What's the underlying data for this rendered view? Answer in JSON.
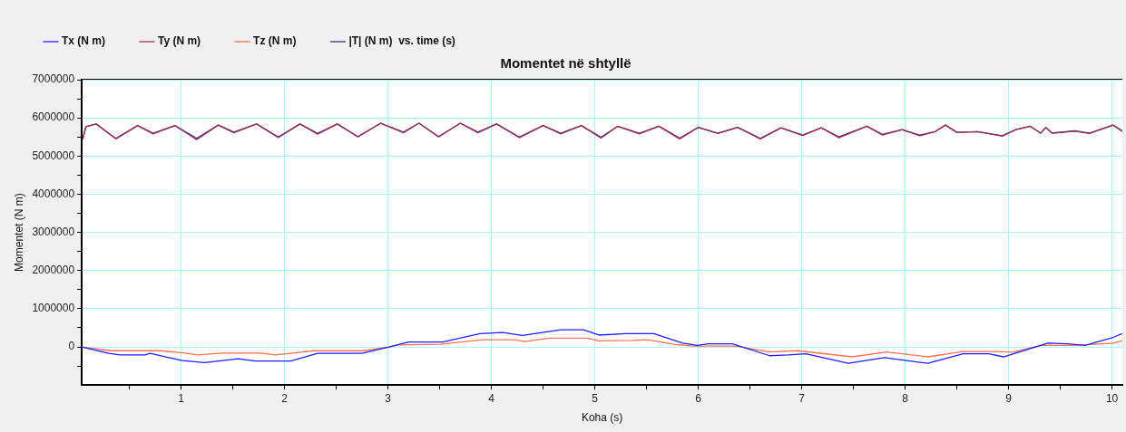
{
  "chart_data": {
    "type": "line",
    "title": "Momentet në shtyllë",
    "xlabel": "Koha (s)",
    "ylabel": "Momentet (N m)",
    "xlim": [
      0.04,
      10.1
    ],
    "xticks": [
      {
        "value": 0.5,
        "label": null
      },
      1,
      {
        "value": 1.5,
        "label": null
      },
      2,
      {
        "value": 2.5,
        "label": null
      },
      3,
      {
        "value": 3.5,
        "label": null
      },
      4,
      {
        "value": 4.5,
        "label": null
      },
      5,
      {
        "value": 5.5,
        "label": null
      },
      6,
      {
        "value": 6.5,
        "label": null
      },
      7,
      {
        "value": 7.5,
        "label": null
      },
      8,
      {
        "value": 8.5,
        "label": null
      },
      9,
      {
        "value": 9.5,
        "label": null
      },
      10
    ],
    "ylim": [
      -1000000,
      7000000
    ],
    "yticks": [
      {
        "value": -500000,
        "label": null
      },
      0,
      {
        "value": 500000,
        "label": null
      },
      1000000,
      {
        "value": 1500000,
        "label": null
      },
      2000000,
      {
        "value": 2500000,
        "label": null
      },
      3000000,
      {
        "value": 3500000,
        "label": null
      },
      4000000,
      {
        "value": 4500000,
        "label": null
      },
      5000000,
      {
        "value": 5500000,
        "label": null
      },
      6000000,
      {
        "value": 6500000,
        "label": null
      },
      7000000
    ],
    "grid": true,
    "legend": "top left",
    "marker": "none",
    "line_style": "solid",
    "series": [
      {
        "name": "Tx (N m)",
        "color": "#1f1fff",
        "x": [
          0.04,
          0.3,
          0.41,
          0.65,
          0.7,
          1.01,
          1.23,
          1.55,
          1.72,
          2.06,
          2.32,
          2.75,
          3.01,
          3.2,
          3.53,
          3.89,
          4.11,
          4.3,
          4.67,
          4.89,
          5.04,
          5.3,
          5.57,
          5.85,
          5.99,
          6.1,
          6.33,
          6.69,
          6.87,
          7.04,
          7.45,
          7.8,
          8.22,
          8.56,
          8.81,
          8.95,
          9.38,
          9.57,
          9.74,
          10.01,
          10.1
        ],
        "values": [
          0,
          -170000,
          -210000,
          -210000,
          -170000,
          -360000,
          -410000,
          -310000,
          -370000,
          -370000,
          -170000,
          -170000,
          0,
          130000,
          130000,
          350000,
          380000,
          300000,
          450000,
          450000,
          310000,
          350000,
          350000,
          100000,
          40000,
          80000,
          80000,
          -230000,
          -210000,
          -180000,
          -430000,
          -280000,
          -430000,
          -180000,
          -180000,
          -260000,
          100000,
          80000,
          40000,
          250000,
          350000
        ]
      },
      {
        "name": "Ty (N m)",
        "color": "#a0305a",
        "x": [
          0.05,
          0.08,
          0.18,
          0.37,
          0.58,
          0.73,
          0.94,
          1.15,
          1.36,
          1.51,
          1.73,
          1.94,
          2.15,
          2.32,
          2.51,
          2.71,
          2.93,
          3.15,
          3.3,
          3.49,
          3.7,
          3.87,
          4.05,
          4.27,
          4.5,
          4.67,
          4.87,
          5.06,
          5.22,
          5.43,
          5.62,
          5.82,
          6.0,
          6.19,
          6.38,
          6.6,
          6.8,
          7.01,
          7.19,
          7.36,
          7.63,
          7.78,
          7.97,
          8.14,
          8.29,
          8.39,
          8.5,
          8.7,
          8.94,
          9.07,
          9.21,
          9.31,
          9.36,
          9.42,
          9.64,
          9.78,
          10.01,
          10.1
        ],
        "values": [
          5440000,
          5770000,
          5840000,
          5450000,
          5800000,
          5580000,
          5800000,
          5430000,
          5810000,
          5610000,
          5840000,
          5480000,
          5840000,
          5570000,
          5840000,
          5500000,
          5860000,
          5610000,
          5860000,
          5500000,
          5860000,
          5610000,
          5840000,
          5480000,
          5800000,
          5580000,
          5800000,
          5470000,
          5780000,
          5580000,
          5780000,
          5450000,
          5750000,
          5590000,
          5750000,
          5450000,
          5740000,
          5540000,
          5740000,
          5480000,
          5780000,
          5550000,
          5690000,
          5530000,
          5640000,
          5810000,
          5620000,
          5640000,
          5520000,
          5690000,
          5780000,
          5600000,
          5750000,
          5600000,
          5650000,
          5590000,
          5810000,
          5640000
        ]
      },
      {
        "name": "Tz (N m)",
        "color": "#ff7050",
        "x": [
          0.04,
          0.32,
          0.8,
          1.04,
          1.16,
          1.39,
          1.77,
          1.91,
          2.08,
          2.28,
          2.77,
          3.01,
          3.1,
          3.51,
          3.92,
          4.22,
          4.32,
          4.56,
          4.93,
          5.04,
          5.36,
          5.51,
          5.79,
          5.96,
          6.36,
          6.69,
          6.96,
          7.49,
          7.82,
          8.22,
          8.56,
          8.88,
          9.04,
          9.31,
          9.65,
          10.01,
          10.1
        ],
        "values": [
          0,
          -100000,
          -100000,
          -160000,
          -210000,
          -160000,
          -160000,
          -210000,
          -160000,
          -100000,
          -100000,
          0,
          50000,
          70000,
          190000,
          190000,
          140000,
          230000,
          230000,
          160000,
          170000,
          190000,
          60000,
          20000,
          20000,
          -130000,
          -100000,
          -260000,
          -130000,
          -260000,
          -120000,
          -120000,
          -140000,
          40000,
          40000,
          100000,
          160000
        ]
      },
      {
        "name": "|T| (N m)  vs. time (s)",
        "color": "#303080",
        "x": [
          0.05,
          0.08,
          0.18,
          0.37,
          0.58,
          0.73,
          0.94,
          1.15,
          1.36,
          1.51,
          1.73,
          1.94,
          2.15,
          2.32,
          2.51,
          2.71,
          2.93,
          3.15,
          3.3,
          3.49,
          3.7,
          3.87,
          4.05,
          4.27,
          4.5,
          4.67,
          4.87,
          5.06,
          5.22,
          5.43,
          5.62,
          5.82,
          6.0,
          6.19,
          6.38,
          6.6,
          6.8,
          7.01,
          7.19,
          7.36,
          7.63,
          7.78,
          7.97,
          8.14,
          8.29,
          8.39,
          8.5,
          8.7,
          8.94,
          9.07,
          9.21,
          9.31,
          9.36,
          9.42,
          9.64,
          9.78,
          10.01,
          10.1
        ],
        "values": [
          5460000,
          5770000,
          5840000,
          5460000,
          5800000,
          5600000,
          5800000,
          5460000,
          5810000,
          5630000,
          5840000,
          5500000,
          5840000,
          5590000,
          5840000,
          5510000,
          5860000,
          5630000,
          5860000,
          5510000,
          5860000,
          5630000,
          5840000,
          5500000,
          5800000,
          5600000,
          5800000,
          5490000,
          5780000,
          5600000,
          5780000,
          5470000,
          5750000,
          5600000,
          5750000,
          5460000,
          5740000,
          5550000,
          5740000,
          5500000,
          5780000,
          5570000,
          5690000,
          5550000,
          5640000,
          5810000,
          5620000,
          5640000,
          5530000,
          5690000,
          5780000,
          5600000,
          5750000,
          5600000,
          5660000,
          5600000,
          5810000,
          5660000
        ]
      }
    ]
  }
}
